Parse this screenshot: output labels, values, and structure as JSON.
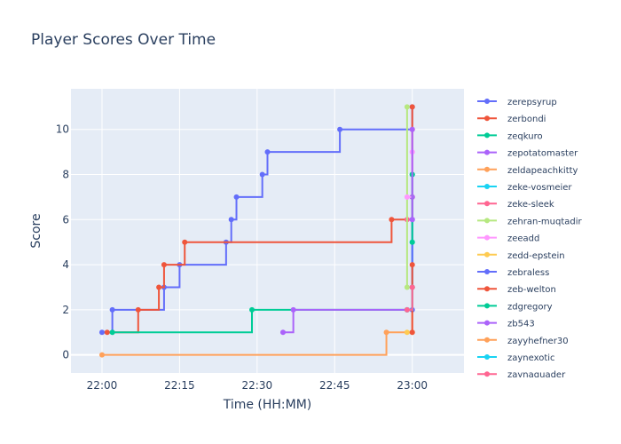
{
  "chart_data": {
    "type": "line",
    "title": "Player Scores Over Time",
    "xlabel": "Time (HH:MM)",
    "ylabel": "Score",
    "x_ticks": [
      "22:00",
      "22:15",
      "22:30",
      "22:45",
      "23:00"
    ],
    "y_ticks": [
      "0",
      "2",
      "4",
      "6",
      "8",
      "10"
    ],
    "x_range": [
      "21:54",
      "23:10"
    ],
    "y_range": [
      -0.8,
      11.8
    ],
    "line_shape": "step",
    "grid": true,
    "legend_position": "right",
    "series": [
      {
        "name": "zerepsyrup",
        "color": "#636efa",
        "points": [
          [
            "22:00",
            1
          ],
          [
            "22:02",
            2
          ],
          [
            "22:12",
            3
          ],
          [
            "22:15",
            4
          ],
          [
            "22:24",
            5
          ],
          [
            "22:25",
            6
          ],
          [
            "22:26",
            7
          ],
          [
            "22:31",
            8
          ],
          [
            "22:32",
            9
          ],
          [
            "22:46",
            10
          ],
          [
            "23:00",
            11
          ]
        ]
      },
      {
        "name": "zerbondi",
        "color": "#ef553b",
        "points": [
          [
            "22:01",
            1
          ],
          [
            "22:07",
            2
          ],
          [
            "22:11",
            3
          ],
          [
            "22:12",
            4
          ],
          [
            "22:16",
            5
          ],
          [
            "22:56",
            6
          ],
          [
            "23:00",
            7
          ],
          [
            "23:00",
            11
          ]
        ]
      },
      {
        "name": "zeqkuro",
        "color": "#00cc96",
        "points": [
          [
            "22:02",
            1
          ],
          [
            "22:29",
            2
          ],
          [
            "23:00",
            8
          ]
        ]
      },
      {
        "name": "zepotatomaster",
        "color": "#ab63fa",
        "points": [
          [
            "22:35",
            1
          ],
          [
            "22:37",
            2
          ],
          [
            "23:00",
            7
          ]
        ]
      },
      {
        "name": "zeldapeachkitty",
        "color": "#ffa15a",
        "points": [
          [
            "22:00",
            0
          ],
          [
            "22:55",
            1
          ],
          [
            "23:00",
            3
          ]
        ]
      },
      {
        "name": "zeke-vosmeier",
        "color": "#19d3f3",
        "points": [
          [
            "22:59",
            2
          ],
          [
            "23:00",
            5
          ]
        ]
      },
      {
        "name": "zeke-sleek",
        "color": "#ff6692",
        "points": [
          [
            "22:59",
            6
          ],
          [
            "23:00",
            10
          ]
        ]
      },
      {
        "name": "zehran-muqtadir",
        "color": "#b6e880",
        "points": [
          [
            "22:59",
            3
          ],
          [
            "22:59",
            11
          ]
        ]
      },
      {
        "name": "zeeadd",
        "color": "#ff97ff",
        "points": [
          [
            "22:59",
            7
          ],
          [
            "23:00",
            9
          ]
        ]
      },
      {
        "name": "zedd-epstein",
        "color": "#fecb52",
        "points": [
          [
            "22:59",
            1
          ],
          [
            "23:00",
            1
          ]
        ]
      },
      {
        "name": "zebraless",
        "color": "#636efa",
        "points": [
          [
            "23:00",
            2
          ],
          [
            "23:00",
            6
          ]
        ]
      },
      {
        "name": "zeb-welton",
        "color": "#ef553b",
        "points": [
          [
            "23:00",
            1
          ],
          [
            "23:00",
            4
          ]
        ]
      },
      {
        "name": "zdgregory",
        "color": "#00cc96",
        "points": [
          [
            "23:00",
            5
          ],
          [
            "23:00",
            8
          ]
        ]
      },
      {
        "name": "zb543",
        "color": "#ab63fa",
        "points": [
          [
            "23:00",
            6
          ],
          [
            "23:00",
            10
          ]
        ]
      },
      {
        "name": "zayyhefner30",
        "color": "#ffa15a",
        "points": [
          [
            "22:59",
            2
          ],
          [
            "23:00",
            3
          ]
        ]
      },
      {
        "name": "zaynexotic",
        "color": "#19d3f3",
        "points": [
          [
            "22:59",
            2
          ],
          [
            "23:00",
            3
          ]
        ]
      },
      {
        "name": "zaynaquader",
        "color": "#ff6692",
        "points": [
          [
            "22:59",
            2
          ],
          [
            "23:00",
            3
          ]
        ]
      }
    ]
  }
}
